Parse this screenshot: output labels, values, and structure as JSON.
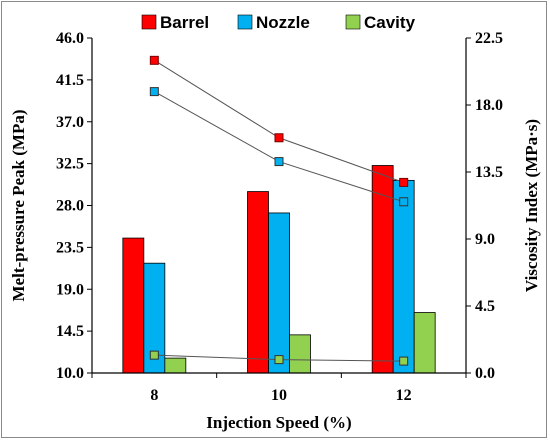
{
  "chart_data": {
    "type": "bar",
    "categories": [
      "8",
      "10",
      "12"
    ],
    "xlabel": "Injection Speed (%)",
    "ylabel": "Melt-pressure Peak (MPa)",
    "y2label": "Viscosity Index (MPa·s)",
    "ylim": [
      10.0,
      46.0
    ],
    "y2lim": [
      0.0,
      22.5
    ],
    "yticks": [
      "10.0",
      "14.5",
      "19.0",
      "23.5",
      "28.0",
      "32.5",
      "37.0",
      "41.5",
      "46.0"
    ],
    "y2ticks": [
      "0.0",
      "4.5",
      "9.0",
      "13.5",
      "18.0",
      "22.5"
    ],
    "legend_position": "top",
    "series": [
      {
        "name": "Barrel",
        "color": "#ff0000",
        "values": [
          24.5,
          29.5,
          32.3
        ]
      },
      {
        "name": "Nozzle",
        "color": "#00b0f0",
        "values": [
          21.8,
          27.2,
          30.7
        ]
      },
      {
        "name": "Cavity",
        "color": "#92d050",
        "values": [
          11.6,
          14.1,
          16.5
        ]
      }
    ],
    "line_series": [
      {
        "name": "Barrel",
        "axis": "right",
        "marker": "filled-square",
        "color": "#ff0000",
        "values": [
          21.0,
          15.8,
          12.8
        ]
      },
      {
        "name": "Nozzle",
        "axis": "right",
        "marker": "open-square",
        "color": "#00b0f0",
        "values": [
          18.9,
          14.2,
          11.5
        ]
      },
      {
        "name": "Cavity",
        "axis": "right",
        "marker": "open-square",
        "color": "#92d050",
        "values": [
          1.2,
          0.9,
          0.8
        ]
      }
    ]
  }
}
